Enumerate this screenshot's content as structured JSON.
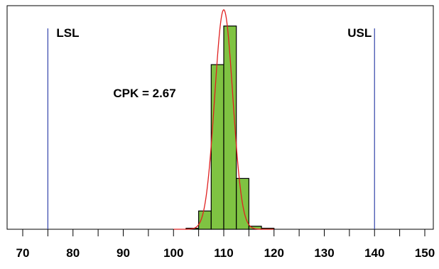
{
  "chart_data": {
    "type": "bar",
    "title": "",
    "xlabel": "",
    "ylabel": "",
    "xlim": [
      70,
      150
    ],
    "bin_width": 2.5,
    "bins": [
      {
        "start": 102.5,
        "end": 105,
        "value": 0.5
      },
      {
        "start": 105,
        "end": 107.5,
        "value": 9
      },
      {
        "start": 107.5,
        "end": 110,
        "value": 81
      },
      {
        "start": 110,
        "end": 112.5,
        "value": 100
      },
      {
        "start": 112.5,
        "end": 115,
        "value": 25
      },
      {
        "start": 115,
        "end": 117.5,
        "value": 1.5
      },
      {
        "start": 117.5,
        "end": 120,
        "value": 0.5
      }
    ],
    "ymax": 110,
    "x_tick_labels": [
      "70",
      "80",
      "90",
      "100",
      "110",
      "120",
      "130",
      "140",
      "150"
    ],
    "minor_tick_step": 5,
    "fit_curve": {
      "mean": 110,
      "sd": 1.8,
      "peak": 108,
      "color": "#e02020"
    },
    "limits": [
      {
        "label": "LSL",
        "value": 75,
        "color": "#3344aa"
      },
      {
        "label": "USL",
        "value": 140,
        "color": "#3344aa"
      }
    ],
    "annotations": [
      {
        "text": "CPK = 2.67",
        "x": 88,
        "y": 65
      }
    ],
    "bar_color": "#7fc342",
    "grid": false,
    "legend": "none"
  }
}
